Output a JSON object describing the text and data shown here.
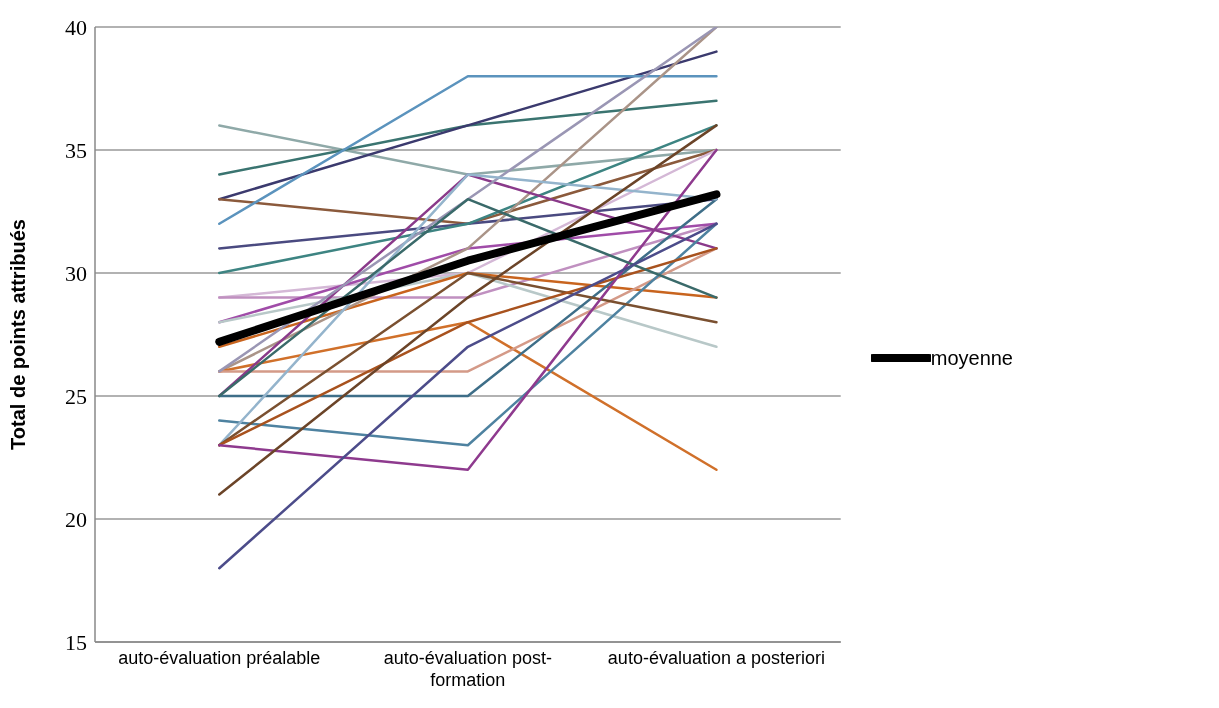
{
  "chart_data": {
    "type": "line",
    "ylabel": "Total de points attribués",
    "categories": [
      "auto-évaluation préalable",
      "auto-évaluation post-formation",
      "auto-évaluation a posteriori"
    ],
    "ylim": [
      15,
      40
    ],
    "yticks": [
      15,
      20,
      25,
      30,
      35,
      40
    ],
    "grid": "y",
    "legend": "right",
    "marker": "none",
    "line_style": "solid",
    "series": [
      {
        "color": "#8fa9a8",
        "values": [
          36,
          34,
          35
        ]
      },
      {
        "color": "#3a7470",
        "values": [
          34,
          36,
          37
        ]
      },
      {
        "color": "#3b3a6e",
        "values": [
          33,
          36,
          39
        ]
      },
      {
        "color": "#8b5a3c",
        "values": [
          33,
          32,
          35
        ]
      },
      {
        "color": "#5b93bd",
        "values": [
          32,
          38,
          38
        ]
      },
      {
        "color": "#4a4a80",
        "values": [
          31,
          32,
          33
        ]
      },
      {
        "color": "#3d8482",
        "values": [
          30,
          32,
          36
        ]
      },
      {
        "color": "#d4b8d6",
        "values": [
          29,
          30,
          35
        ]
      },
      {
        "color": "#c090c0",
        "values": [
          29,
          29,
          32
        ]
      },
      {
        "color": "#a04ca8",
        "values": [
          28,
          31,
          32
        ]
      },
      {
        "color": "#b8c8c8",
        "values": [
          28,
          30,
          27
        ]
      },
      {
        "color": "#c8641e",
        "values": [
          27,
          30,
          29
        ]
      },
      {
        "color": "#aa9488",
        "values": [
          26,
          31,
          40
        ]
      },
      {
        "color": "#d0702a",
        "values": [
          26,
          28,
          22
        ]
      },
      {
        "color": "#d49a88",
        "values": [
          26,
          26,
          31
        ]
      },
      {
        "color": "#8a3a8a",
        "values": [
          25,
          34,
          31
        ]
      },
      {
        "color": "#9a96b4",
        "values": [
          26,
          33,
          40
        ]
      },
      {
        "color": "#3e6e88",
        "values": [
          25,
          25,
          33
        ]
      },
      {
        "color": "#4e82a0",
        "values": [
          24,
          23,
          32
        ]
      },
      {
        "color": "#94b4cc",
        "values": [
          23,
          34,
          33
        ]
      },
      {
        "color": "#7a5030",
        "values": [
          23,
          30,
          28
        ]
      },
      {
        "color": "#a8521e",
        "values": [
          23,
          28,
          31
        ]
      },
      {
        "color": "#8e3a8e",
        "values": [
          23,
          22,
          35
        ]
      },
      {
        "color": "#3a6a6a",
        "values": [
          25,
          33,
          29
        ]
      },
      {
        "color": "#6b4428",
        "values": [
          21,
          29,
          36
        ]
      },
      {
        "color": "#4c4c8a",
        "values": [
          18,
          27,
          32
        ]
      },
      {
        "name": "moyenne",
        "color": "#000000",
        "values": [
          27.2,
          30.5,
          33.2
        ]
      }
    ]
  }
}
